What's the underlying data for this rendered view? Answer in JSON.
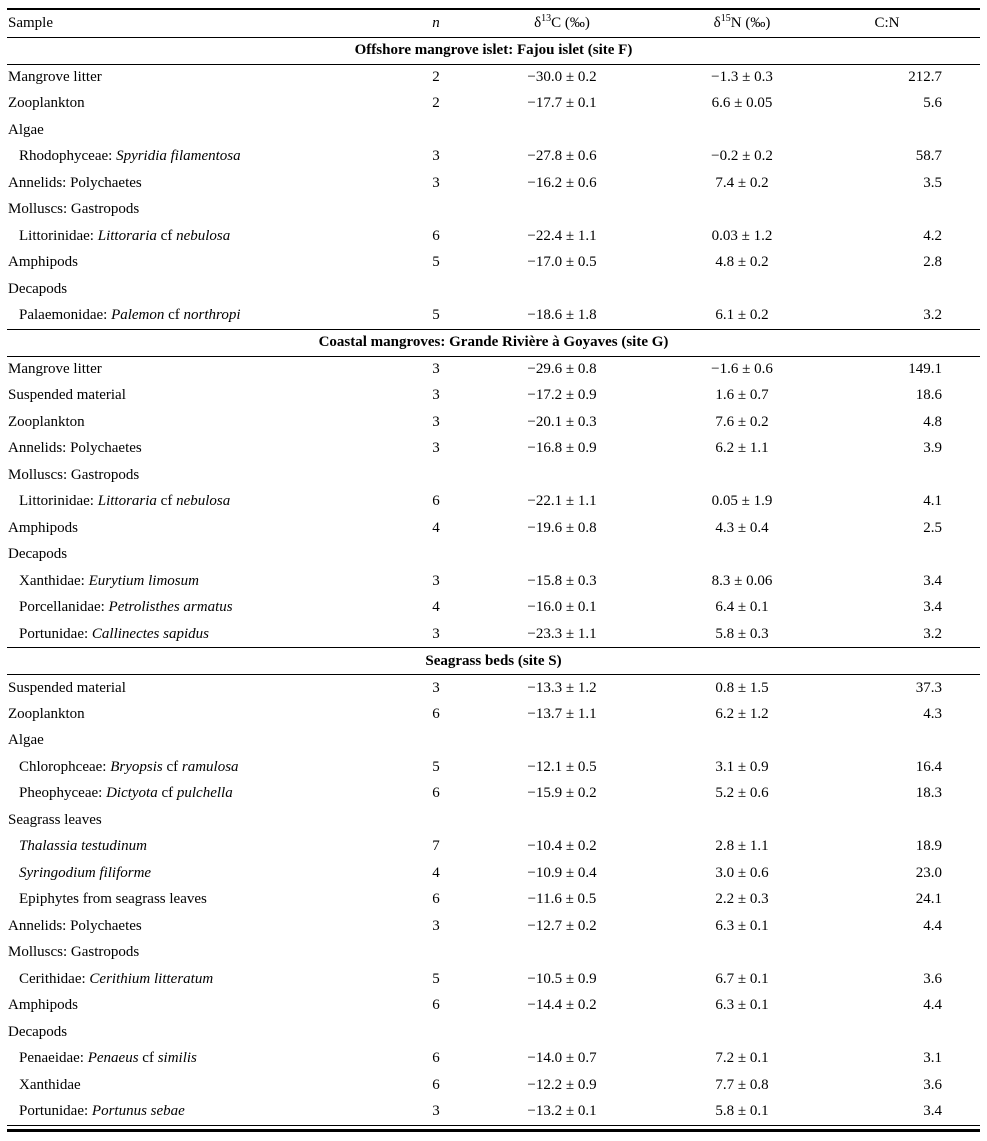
{
  "table": {
    "columns": {
      "sample": "Sample",
      "n": "n",
      "d13c": {
        "prefix": "δ",
        "sup": "13",
        "suffix": "C (‰)"
      },
      "d15n": {
        "prefix": "δ",
        "sup": "15",
        "suffix": "N (‰)"
      },
      "cn": "C:N"
    },
    "sections": [
      {
        "title": "Offshore mangrove islet: Fajou islet (site F)",
        "rows": [
          {
            "label": [
              {
                "text": "Mangrove litter"
              }
            ],
            "indent": false,
            "n": "2",
            "d13c": "−30.0 ± 0.2",
            "d15n": "−1.3 ± 0.3",
            "cn": "212.7"
          },
          {
            "label": [
              {
                "text": "Zooplankton"
              }
            ],
            "indent": false,
            "n": "2",
            "d13c": "−17.7 ± 0.1",
            "d15n": "6.6 ± 0.05",
            "cn": "5.6"
          },
          {
            "label": [
              {
                "text": "Algae"
              }
            ],
            "indent": false,
            "n": "",
            "d13c": "",
            "d15n": "",
            "cn": ""
          },
          {
            "label": [
              {
                "text": "Rhodophyceae: "
              },
              {
                "text": "Spyridia filamentosa",
                "italic": true
              }
            ],
            "indent": true,
            "n": "3",
            "d13c": "−27.8 ± 0.6",
            "d15n": "−0.2 ± 0.2",
            "cn": "58.7"
          },
          {
            "label": [
              {
                "text": "Annelids: Polychaetes"
              }
            ],
            "indent": false,
            "n": "3",
            "d13c": "−16.2 ± 0.6",
            "d15n": "7.4 ± 0.2",
            "cn": "3.5"
          },
          {
            "label": [
              {
                "text": "Molluscs: Gastropods"
              }
            ],
            "indent": false,
            "n": "",
            "d13c": "",
            "d15n": "",
            "cn": ""
          },
          {
            "label": [
              {
                "text": "Littorinidae: "
              },
              {
                "text": "Littoraria",
                "italic": true
              },
              {
                "text": " cf "
              },
              {
                "text": "nebulosa",
                "italic": true
              }
            ],
            "indent": true,
            "n": "6",
            "d13c": "−22.4 ± 1.1",
            "d15n": "0.03 ± 1.2",
            "cn": "4.2"
          },
          {
            "label": [
              {
                "text": "Amphipods"
              }
            ],
            "indent": false,
            "n": "5",
            "d13c": "−17.0 ± 0.5",
            "d15n": "4.8 ± 0.2",
            "cn": "2.8"
          },
          {
            "label": [
              {
                "text": "Decapods"
              }
            ],
            "indent": false,
            "n": "",
            "d13c": "",
            "d15n": "",
            "cn": ""
          },
          {
            "label": [
              {
                "text": "Palaemonidae: "
              },
              {
                "text": "Palemon",
                "italic": true
              },
              {
                "text": " cf "
              },
              {
                "text": "northropi",
                "italic": true
              }
            ],
            "indent": true,
            "n": "5",
            "d13c": "−18.6 ± 1.8",
            "d15n": "6.1 ± 0.2",
            "cn": "3.2"
          }
        ]
      },
      {
        "title": "Coastal mangroves: Grande Rivière à Goyaves (site G)",
        "rows": [
          {
            "label": [
              {
                "text": "Mangrove litter"
              }
            ],
            "indent": false,
            "n": "3",
            "d13c": "−29.6 ± 0.8",
            "d15n": "−1.6 ± 0.6",
            "cn": "149.1"
          },
          {
            "label": [
              {
                "text": "Suspended material"
              }
            ],
            "indent": false,
            "n": "3",
            "d13c": "−17.2 ± 0.9",
            "d15n": "1.6 ± 0.7",
            "cn": "18.6"
          },
          {
            "label": [
              {
                "text": "Zooplankton"
              }
            ],
            "indent": false,
            "n": "3",
            "d13c": "−20.1 ± 0.3",
            "d15n": "7.6 ± 0.2",
            "cn": "4.8"
          },
          {
            "label": [
              {
                "text": "Annelids: Polychaetes"
              }
            ],
            "indent": false,
            "n": "3",
            "d13c": "−16.8 ± 0.9",
            "d15n": "6.2 ± 1.1",
            "cn": "3.9"
          },
          {
            "label": [
              {
                "text": "Molluscs: Gastropods"
              }
            ],
            "indent": false,
            "n": "",
            "d13c": "",
            "d15n": "",
            "cn": ""
          },
          {
            "label": [
              {
                "text": "Littorinidae: "
              },
              {
                "text": "Littoraria",
                "italic": true
              },
              {
                "text": " cf "
              },
              {
                "text": "nebulosa",
                "italic": true
              }
            ],
            "indent": true,
            "n": "6",
            "d13c": "−22.1 ± 1.1",
            "d15n": "0.05 ± 1.9",
            "cn": "4.1"
          },
          {
            "label": [
              {
                "text": "Amphipods"
              }
            ],
            "indent": false,
            "n": "4",
            "d13c": "−19.6 ± 0.8",
            "d15n": "4.3 ± 0.4",
            "cn": "2.5"
          },
          {
            "label": [
              {
                "text": "Decapods"
              }
            ],
            "indent": false,
            "n": "",
            "d13c": "",
            "d15n": "",
            "cn": ""
          },
          {
            "label": [
              {
                "text": "Xanthidae: "
              },
              {
                "text": "Eurytium limosum",
                "italic": true
              }
            ],
            "indent": true,
            "n": "3",
            "d13c": "−15.8 ± 0.3",
            "d15n": "8.3 ± 0.06",
            "cn": "3.4"
          },
          {
            "label": [
              {
                "text": "Porcellanidae: "
              },
              {
                "text": "Petrolisthes armatus",
                "italic": true
              }
            ],
            "indent": true,
            "n": "4",
            "d13c": "−16.0 ± 0.1",
            "d15n": "6.4 ± 0.1",
            "cn": "3.4"
          },
          {
            "label": [
              {
                "text": "Portunidae: "
              },
              {
                "text": "Callinectes sapidus",
                "italic": true
              }
            ],
            "indent": true,
            "n": "3",
            "d13c": "−23.3 ± 1.1",
            "d15n": "5.8 ± 0.3",
            "cn": "3.2"
          }
        ]
      },
      {
        "title": "Seagrass beds (site S)",
        "rows": [
          {
            "label": [
              {
                "text": "Suspended material"
              }
            ],
            "indent": false,
            "n": "3",
            "d13c": "−13.3 ± 1.2",
            "d15n": "0.8 ± 1.5",
            "cn": "37.3"
          },
          {
            "label": [
              {
                "text": "Zooplankton"
              }
            ],
            "indent": false,
            "n": "6",
            "d13c": "−13.7 ± 1.1",
            "d15n": "6.2 ± 1.2",
            "cn": "4.3"
          },
          {
            "label": [
              {
                "text": "Algae"
              }
            ],
            "indent": false,
            "n": "",
            "d13c": "",
            "d15n": "",
            "cn": ""
          },
          {
            "label": [
              {
                "text": "Chlorophceae: "
              },
              {
                "text": "Bryopsis",
                "italic": true
              },
              {
                "text": " cf "
              },
              {
                "text": "ramulosa",
                "italic": true
              }
            ],
            "indent": true,
            "n": "5",
            "d13c": "−12.1 ± 0.5",
            "d15n": "3.1 ± 0.9",
            "cn": "16.4"
          },
          {
            "label": [
              {
                "text": "Pheophyceae: "
              },
              {
                "text": "Dictyota",
                "italic": true
              },
              {
                "text": " cf "
              },
              {
                "text": "pulchella",
                "italic": true
              }
            ],
            "indent": true,
            "n": "6",
            "d13c": "−15.9 ± 0.2",
            "d15n": "5.2 ± 0.6",
            "cn": "18.3"
          },
          {
            "label": [
              {
                "text": "Seagrass leaves"
              }
            ],
            "indent": false,
            "n": "",
            "d13c": "",
            "d15n": "",
            "cn": ""
          },
          {
            "label": [
              {
                "text": "Thalassia testudinum",
                "italic": true
              }
            ],
            "indent": true,
            "n": "7",
            "d13c": "−10.4 ± 0.2",
            "d15n": "2.8 ± 1.1",
            "cn": "18.9"
          },
          {
            "label": [
              {
                "text": "Syringodium filiforme",
                "italic": true
              }
            ],
            "indent": true,
            "n": "4",
            "d13c": "−10.9 ± 0.4",
            "d15n": "3.0 ± 0.6",
            "cn": "23.0"
          },
          {
            "label": [
              {
                "text": "Epiphytes from seagrass leaves"
              }
            ],
            "indent": true,
            "n": "6",
            "d13c": "−11.6 ± 0.5",
            "d15n": "2.2 ± 0.3",
            "cn": "24.1"
          },
          {
            "label": [
              {
                "text": "Annelids: Polychaetes"
              }
            ],
            "indent": false,
            "n": "3",
            "d13c": "−12.7 ± 0.2",
            "d15n": "6.3 ± 0.1",
            "cn": "4.4"
          },
          {
            "label": [
              {
                "text": "Molluscs: Gastropods"
              }
            ],
            "indent": false,
            "n": "",
            "d13c": "",
            "d15n": "",
            "cn": ""
          },
          {
            "label": [
              {
                "text": "Cerithidae: "
              },
              {
                "text": "Cerithium litteratum",
                "italic": true
              }
            ],
            "indent": true,
            "n": "5",
            "d13c": "−10.5 ± 0.9",
            "d15n": "6.7 ± 0.1",
            "cn": "3.6"
          },
          {
            "label": [
              {
                "text": "Amphipods"
              }
            ],
            "indent": false,
            "n": "6",
            "d13c": "−14.4 ± 0.2",
            "d15n": "6.3 ± 0.1",
            "cn": "4.4"
          },
          {
            "label": [
              {
                "text": "Decapods"
              }
            ],
            "indent": false,
            "n": "",
            "d13c": "",
            "d15n": "",
            "cn": ""
          },
          {
            "label": [
              {
                "text": "Penaeidae: "
              },
              {
                "text": "Penaeus",
                "italic": true
              },
              {
                "text": " cf "
              },
              {
                "text": "similis",
                "italic": true
              }
            ],
            "indent": true,
            "n": "6",
            "d13c": "−14.0 ± 0.7",
            "d15n": "7.2 ± 0.1",
            "cn": "3.1"
          },
          {
            "label": [
              {
                "text": "Xanthidae"
              }
            ],
            "indent": true,
            "n": "6",
            "d13c": "−12.2 ± 0.9",
            "d15n": "7.7 ± 0.8",
            "cn": "3.6"
          },
          {
            "label": [
              {
                "text": "Portunidae: "
              },
              {
                "text": "Portunus sebae",
                "italic": true
              }
            ],
            "indent": true,
            "n": "3",
            "d13c": "−13.2 ± 0.1",
            "d15n": "5.8 ± 0.1",
            "cn": "3.4"
          }
        ]
      }
    ]
  }
}
